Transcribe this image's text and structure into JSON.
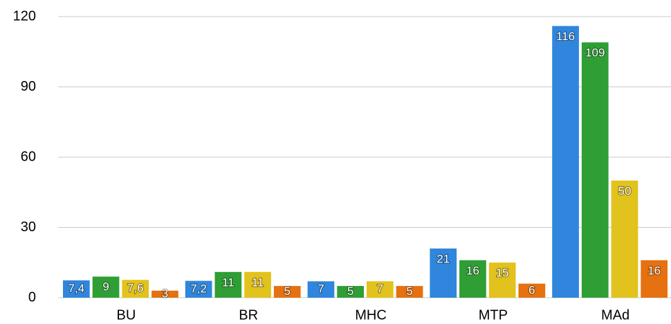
{
  "chart_data": {
    "type": "bar",
    "categories": [
      "BU",
      "BR",
      "MHC",
      "MTP",
      "MAd"
    ],
    "series": [
      {
        "color": "#2f86dc",
        "values": [
          7.4,
          7.2,
          7,
          21,
          116
        ],
        "value_labels": [
          "7,4",
          "7,2",
          "7",
          "21",
          "116"
        ]
      },
      {
        "color": "#2f9e34",
        "values": [
          9,
          11,
          5,
          16,
          109
        ],
        "value_labels": [
          "9",
          "11",
          "5",
          "16",
          "109"
        ]
      },
      {
        "color": "#e2c21c",
        "values": [
          7.6,
          11,
          7,
          15,
          50
        ],
        "value_labels": [
          "7,6",
          "11",
          "7",
          "15",
          "50"
        ]
      },
      {
        "color": "#e57110",
        "values": [
          3,
          5,
          5,
          6,
          16
        ],
        "value_labels": [
          "3",
          "5",
          "5",
          "6",
          "16"
        ]
      }
    ],
    "ylim": [
      0,
      120
    ],
    "yticks": [
      0,
      30,
      60,
      90,
      120
    ],
    "grid": true
  }
}
